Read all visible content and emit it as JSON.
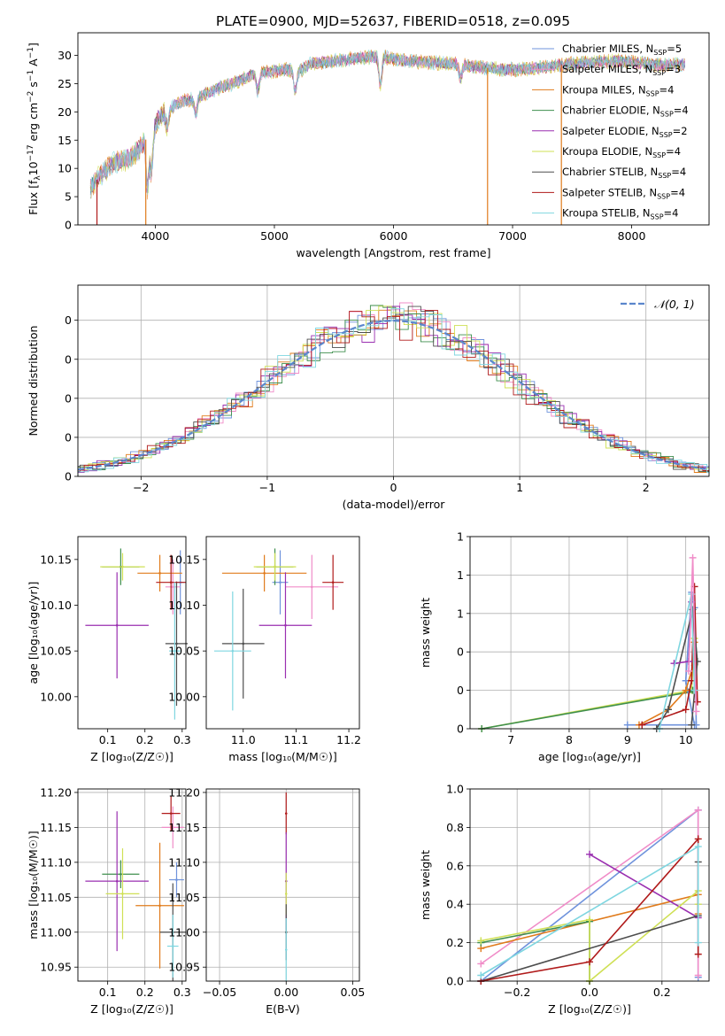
{
  "figure_title": "PLATE=0900, MJD=52637, FIBERID=0518, z=0.095",
  "colors": {
    "chabrier_miles": "#6f93dc",
    "salpeter_miles": "#f08cc8",
    "kroupa_miles": "#e07b1c",
    "chabrier_elodie": "#3f8f4e",
    "salpeter_elodie": "#9a2fb0",
    "kroupa_elodie": "#cfe055",
    "chabrier_stelib": "#4d4d4d",
    "salpeter_stelib": "#b01a1a",
    "kroupa_stelib": "#7fd6e0",
    "gauss": "#5b86cc",
    "grid": "#b0b0b0"
  },
  "legend_labels": [
    "Chabrier MILES, N",
    "Salpeter MILES, N",
    "Kroupa MILES, N",
    "Chabrier ELODIE, N",
    "Salpeter ELODIE, N",
    "Kroupa ELODIE, N",
    "Chabrier STELIB, N",
    "Salpeter STELIB, N",
    "Kroupa STELIB, N"
  ],
  "legend_sub": "SSP",
  "legend_n": [
    "=5",
    "=3",
    "=4",
    "=4",
    "=2",
    "=4",
    "=4",
    "=4",
    "=4"
  ],
  "chart_data": [
    {
      "type": "line",
      "title": "PLATE=0900, MJD=52637, FIBERID=0518, z=0.095",
      "xlabel": "wavelength [Angstrom, rest frame]",
      "ylabel_parts": [
        "Flux [f",
        "λ",
        "10",
        "−17",
        " erg cm",
        "−2",
        " s",
        "−1",
        " A",
        "−1",
        "]"
      ],
      "xlim": [
        3350,
        8650
      ],
      "ylim": [
        0,
        34
      ],
      "xticks": [
        4000,
        5000,
        6000,
        7000,
        8000
      ],
      "yticks": [
        0,
        5,
        10,
        15,
        20,
        25,
        30
      ],
      "grid": false,
      "legend_position": "right",
      "continuum": [
        [
          3450,
          6.5
        ],
        [
          3550,
          9
        ],
        [
          3650,
          11
        ],
        [
          3750,
          11.5
        ],
        [
          3850,
          13
        ],
        [
          3950,
          16
        ],
        [
          4050,
          19.5
        ],
        [
          4150,
          21
        ],
        [
          4250,
          22
        ],
        [
          4350,
          22.5
        ],
        [
          4500,
          24
        ],
        [
          4650,
          25
        ],
        [
          4800,
          26.5
        ],
        [
          4950,
          27
        ],
        [
          5100,
          27.5
        ],
        [
          5200,
          27
        ],
        [
          5300,
          28.5
        ],
        [
          5500,
          29
        ],
        [
          5700,
          29.5
        ],
        [
          5900,
          29.8
        ],
        [
          6100,
          29
        ],
        [
          6300,
          28.8
        ],
        [
          6500,
          28.5
        ],
        [
          6700,
          28
        ],
        [
          6900,
          27.5
        ],
        [
          7100,
          27.5
        ],
        [
          7300,
          28
        ],
        [
          7500,
          28.5
        ],
        [
          7700,
          28.8
        ],
        [
          7900,
          29
        ],
        [
          8100,
          28.5
        ],
        [
          8300,
          28.2
        ],
        [
          8450,
          28.5
        ]
      ],
      "spikes": [
        {
          "x": 3510,
          "series": "salpeter_stelib"
        },
        {
          "x": 3920,
          "series": "kroupa_miles"
        },
        {
          "x": 6790,
          "series": "kroupa_miles"
        },
        {
          "x": 7410,
          "series": "kroupa_miles"
        }
      ]
    },
    {
      "type": "histogram",
      "xlabel": "(data-model)/error",
      "ylabel": "Normed distribution",
      "xlim": [
        -2.5,
        2.5
      ],
      "ylim": [
        0,
        0.49
      ],
      "xticks": [
        -2,
        -1,
        0,
        1,
        2
      ],
      "yticks": [
        0.0,
        0.1,
        0.2,
        0.3,
        0.4
      ],
      "grid": true,
      "legend_label": "𝒩(0, 1)",
      "legend_position": "top-right"
    },
    {
      "type": "scatter",
      "xlabel": "Z [log₁₀(Z/Z☉)]",
      "ylabel": "age  [log₁₀(age/yr)]",
      "xlim": [
        0.02,
        0.31
      ],
      "ylim": [
        9.965,
        10.175
      ],
      "xticks": [
        0.1,
        0.2,
        0.3
      ],
      "yticks": [
        10.0,
        10.05,
        10.1,
        10.15
      ],
      "grid": false,
      "points": [
        {
          "s": "chabrier_miles",
          "x": 0.295,
          "xe": 0.01,
          "y": 10.125,
          "ye": 0.035
        },
        {
          "s": "salpeter_miles",
          "x": 0.275,
          "xe": 0.02,
          "y": 10.12,
          "ye": 0.03
        },
        {
          "s": "kroupa_miles",
          "x": 0.24,
          "xe": 0.06,
          "y": 10.135,
          "ye": 0.02
        },
        {
          "s": "chabrier_elodie",
          "x": 0.135,
          "xe": 0.05,
          "y": 10.142,
          "ye": 0.02
        },
        {
          "s": "salpeter_elodie",
          "x": 0.125,
          "xe": 0.085,
          "y": 10.078,
          "ye": 0.058
        },
        {
          "s": "kroupa_elodie",
          "x": 0.14,
          "xe": 0.06,
          "y": 10.142,
          "ye": 0.015
        },
        {
          "s": "chabrier_stelib",
          "x": 0.285,
          "xe": 0.03,
          "y": 10.058,
          "ye": 0.068
        },
        {
          "s": "salpeter_stelib",
          "x": 0.27,
          "xe": 0.04,
          "y": 10.125,
          "ye": 0.03
        },
        {
          "s": "kroupa_stelib",
          "x": 0.28,
          "xe": 0.015,
          "y": 10.05,
          "ye": 0.075
        }
      ]
    },
    {
      "type": "scatter",
      "xlabel": "mass [log₁₀(M/M☉)]",
      "xlim": [
        10.93,
        11.22
      ],
      "ylim": [
        9.965,
        10.175
      ],
      "xticks": [
        11.0,
        11.1,
        11.2
      ],
      "yticks": [
        10.0,
        10.05,
        10.1,
        10.15
      ],
      "grid": false,
      "points": [
        {
          "s": "chabrier_miles",
          "x": 11.07,
          "xe": 0.015,
          "y": 10.125,
          "ye": 0.035
        },
        {
          "s": "salpeter_miles",
          "x": 11.13,
          "xe": 0.05,
          "y": 10.12,
          "ye": 0.035
        },
        {
          "s": "kroupa_miles",
          "x": 11.04,
          "xe": 0.08,
          "y": 10.135,
          "ye": 0.02
        },
        {
          "s": "chabrier_elodie",
          "x": 11.06,
          "xe": 0.035,
          "y": 10.142,
          "ye": 0.02
        },
        {
          "s": "salpeter_elodie",
          "x": 11.08,
          "xe": 0.05,
          "y": 10.078,
          "ye": 0.058
        },
        {
          "s": "kroupa_elodie",
          "x": 11.06,
          "xe": 0.04,
          "y": 10.142,
          "ye": 0.015
        },
        {
          "s": "chabrier_stelib",
          "x": 11.0,
          "xe": 0.04,
          "y": 10.058,
          "ye": 0.06
        },
        {
          "s": "salpeter_stelib",
          "x": 11.17,
          "xe": 0.02,
          "y": 10.125,
          "ye": 0.03
        },
        {
          "s": "kroupa_stelib",
          "x": 10.98,
          "xe": 0.035,
          "y": 10.05,
          "ye": 0.065
        }
      ]
    },
    {
      "type": "line",
      "xlabel": "age  [log₁₀(age/yr)]",
      "ylabel": "mass weight",
      "xlim": [
        6.3,
        10.4
      ],
      "ylim": [
        0,
        1.0
      ],
      "xticks": [
        7,
        8,
        9,
        10
      ],
      "yticks": [
        0.0,
        0.2,
        0.4,
        0.6,
        0.8,
        1.0
      ],
      "grid": true,
      "series": [
        {
          "s": "kroupa_elodie",
          "points": [
            [
              6.5,
              0.0
            ],
            [
              10.1,
              0.2
            ],
            [
              10.15,
              0.47
            ],
            [
              10.15,
              0.33
            ]
          ]
        },
        {
          "s": "chabrier_elodie",
          "points": [
            [
              6.5,
              0.0
            ],
            [
              10.05,
              0.19
            ],
            [
              10.12,
              0.2
            ]
          ]
        },
        {
          "s": "chabrier_miles",
          "points": [
            [
              9.0,
              0.02
            ],
            [
              10.15,
              0.02
            ],
            [
              10.0,
              0.25
            ],
            [
              10.1,
              0.71
            ],
            [
              10.15,
              0.63
            ],
            [
              10.18,
              0.02
            ]
          ]
        },
        {
          "s": "kroupa_miles",
          "points": [
            [
              9.2,
              0.02
            ],
            [
              9.7,
              0.1
            ],
            [
              10.0,
              0.2
            ],
            [
              10.15,
              0.35
            ],
            [
              10.15,
              0.45
            ]
          ]
        },
        {
          "s": "salpeter_stelib",
          "points": [
            [
              9.25,
              0.02
            ],
            [
              10.0,
              0.1
            ],
            [
              10.1,
              0.25
            ],
            [
              10.15,
              0.74
            ],
            [
              10.2,
              0.14
            ]
          ]
        },
        {
          "s": "chabrier_stelib",
          "points": [
            [
              9.5,
              0.0
            ],
            [
              9.7,
              0.1
            ],
            [
              10.12,
              0.62
            ],
            [
              10.2,
              0.35
            ],
            [
              10.1,
              0.02
            ]
          ]
        },
        {
          "s": "salpeter_elodie",
          "points": [
            [
              9.8,
              0.34
            ],
            [
              10.05,
              0.35
            ],
            [
              10.1,
              0.66
            ]
          ]
        },
        {
          "s": "kroupa_stelib",
          "points": [
            [
              9.55,
              0.0
            ],
            [
              10.1,
              0.7
            ],
            [
              10.15,
              0.2
            ]
          ]
        },
        {
          "s": "salpeter_miles",
          "points": [
            [
              10.05,
              0.3
            ],
            [
              10.12,
              0.89
            ],
            [
              10.18,
              0.09
            ]
          ]
        }
      ]
    },
    {
      "type": "scatter",
      "xlabel": "Z [log₁₀(Z/Z☉)]",
      "ylabel": "mass [log₁₀(M/M☉)]",
      "xlim": [
        0.02,
        0.31
      ],
      "ylim": [
        10.93,
        11.205
      ],
      "xticks": [
        0.1,
        0.2,
        0.3
      ],
      "yticks": [
        10.95,
        11.0,
        11.05,
        11.1,
        11.15,
        11.2
      ],
      "grid": true,
      "points": [
        {
          "s": "chabrier_miles",
          "x": 0.285,
          "xe": 0.02,
          "y": 11.075,
          "ye": 0.025
        },
        {
          "s": "salpeter_miles",
          "x": 0.275,
          "xe": 0.03,
          "y": 11.15,
          "ye": 0.03
        },
        {
          "s": "kroupa_miles",
          "x": 0.24,
          "xe": 0.065,
          "y": 11.038,
          "ye": 0.09
        },
        {
          "s": "chabrier_elodie",
          "x": 0.135,
          "xe": 0.05,
          "y": 11.083,
          "ye": 0.02
        },
        {
          "s": "salpeter_elodie",
          "x": 0.125,
          "xe": 0.085,
          "y": 11.073,
          "ye": 0.1
        },
        {
          "s": "kroupa_elodie",
          "x": 0.14,
          "xe": 0.045,
          "y": 11.055,
          "ye": 0.065
        },
        {
          "s": "chabrier_stelib",
          "x": 0.275,
          "xe": 0.035,
          "y": 11.0,
          "ye": 0.07
        },
        {
          "s": "salpeter_stelib",
          "x": 0.27,
          "xe": 0.025,
          "y": 11.17,
          "ye": 0.025
        },
        {
          "s": "kroupa_stelib",
          "x": 0.275,
          "xe": 0.015,
          "y": 10.98,
          "ye": 0.045
        }
      ]
    },
    {
      "type": "scatter",
      "xlabel": "E(B-V)",
      "xlim": [
        -0.06,
        0.055
      ],
      "ylim": [
        10.93,
        11.205
      ],
      "xticks": [
        -0.05,
        0.0,
        0.05
      ],
      "yticks": [
        10.95,
        11.0,
        11.05,
        11.1,
        11.15,
        11.2
      ],
      "grid": true,
      "points": [
        {
          "s": "salpeter_stelib",
          "x": 0.0,
          "y": 11.17,
          "ye": 0.03
        },
        {
          "s": "salpeter_elodie",
          "x": 0.0,
          "y": 11.073,
          "ye": 0.07
        },
        {
          "s": "kroupa_elodie",
          "x": 0.0,
          "y": 11.055,
          "ye": 0.03
        },
        {
          "s": "chabrier_stelib",
          "x": 0.0,
          "y": 11.0,
          "ye": 0.04
        },
        {
          "s": "kroupa_stelib",
          "x": 0.0,
          "y": 10.975,
          "ye": 0.045
        }
      ]
    },
    {
      "type": "line",
      "xlabel": "Z [log₁₀(Z/Z☉)]",
      "ylabel": "mass weight",
      "xlim": [
        -0.33,
        0.33
      ],
      "ylim": [
        0,
        1.0
      ],
      "xticks": [
        -0.2,
        0.0,
        0.2
      ],
      "yticks": [
        0.0,
        0.2,
        0.4,
        0.6,
        0.8,
        1.0
      ],
      "grid": true,
      "series": [
        {
          "s": "chabrier_miles",
          "points": [
            [
              -0.3,
              0.0
            ],
            [
              0.3,
              0.89
            ],
            [
              0.3,
              0.02
            ]
          ]
        },
        {
          "s": "salpeter_miles",
          "points": [
            [
              -0.3,
              0.09
            ],
            [
              0.3,
              0.89
            ],
            [
              0.3,
              0.03
            ]
          ]
        },
        {
          "s": "kroupa_miles",
          "points": [
            [
              -0.3,
              0.17
            ],
            [
              0.3,
              0.45
            ],
            [
              0.3,
              0.35
            ]
          ]
        },
        {
          "s": "chabrier_elodie",
          "points": [
            [
              -0.3,
              0.2
            ],
            [
              0.0,
              0.31
            ],
            [
              0.0,
              0.0
            ]
          ]
        },
        {
          "s": "salpeter_elodie",
          "points": [
            [
              0.0,
              0.66
            ],
            [
              0.3,
              0.33
            ]
          ]
        },
        {
          "s": "kroupa_elodie",
          "points": [
            [
              -0.3,
              0.21
            ],
            [
              0.0,
              0.32
            ],
            [
              0.0,
              0.0
            ],
            [
              0.3,
              0.47
            ],
            [
              0.3,
              0.4
            ]
          ]
        },
        {
          "s": "chabrier_stelib",
          "points": [
            [
              -0.3,
              0.0
            ],
            [
              0.3,
              0.34
            ],
            [
              0.3,
              0.62
            ]
          ]
        },
        {
          "s": "salpeter_stelib",
          "points": [
            [
              -0.3,
              0.0
            ],
            [
              0.0,
              0.1
            ],
            [
              0.3,
              0.74
            ],
            [
              0.3,
              0.14
            ]
          ]
        },
        {
          "s": "kroupa_stelib",
          "points": [
            [
              -0.3,
              0.03
            ],
            [
              0.3,
              0.7
            ],
            [
              0.3,
              0.2
            ]
          ]
        }
      ]
    }
  ]
}
